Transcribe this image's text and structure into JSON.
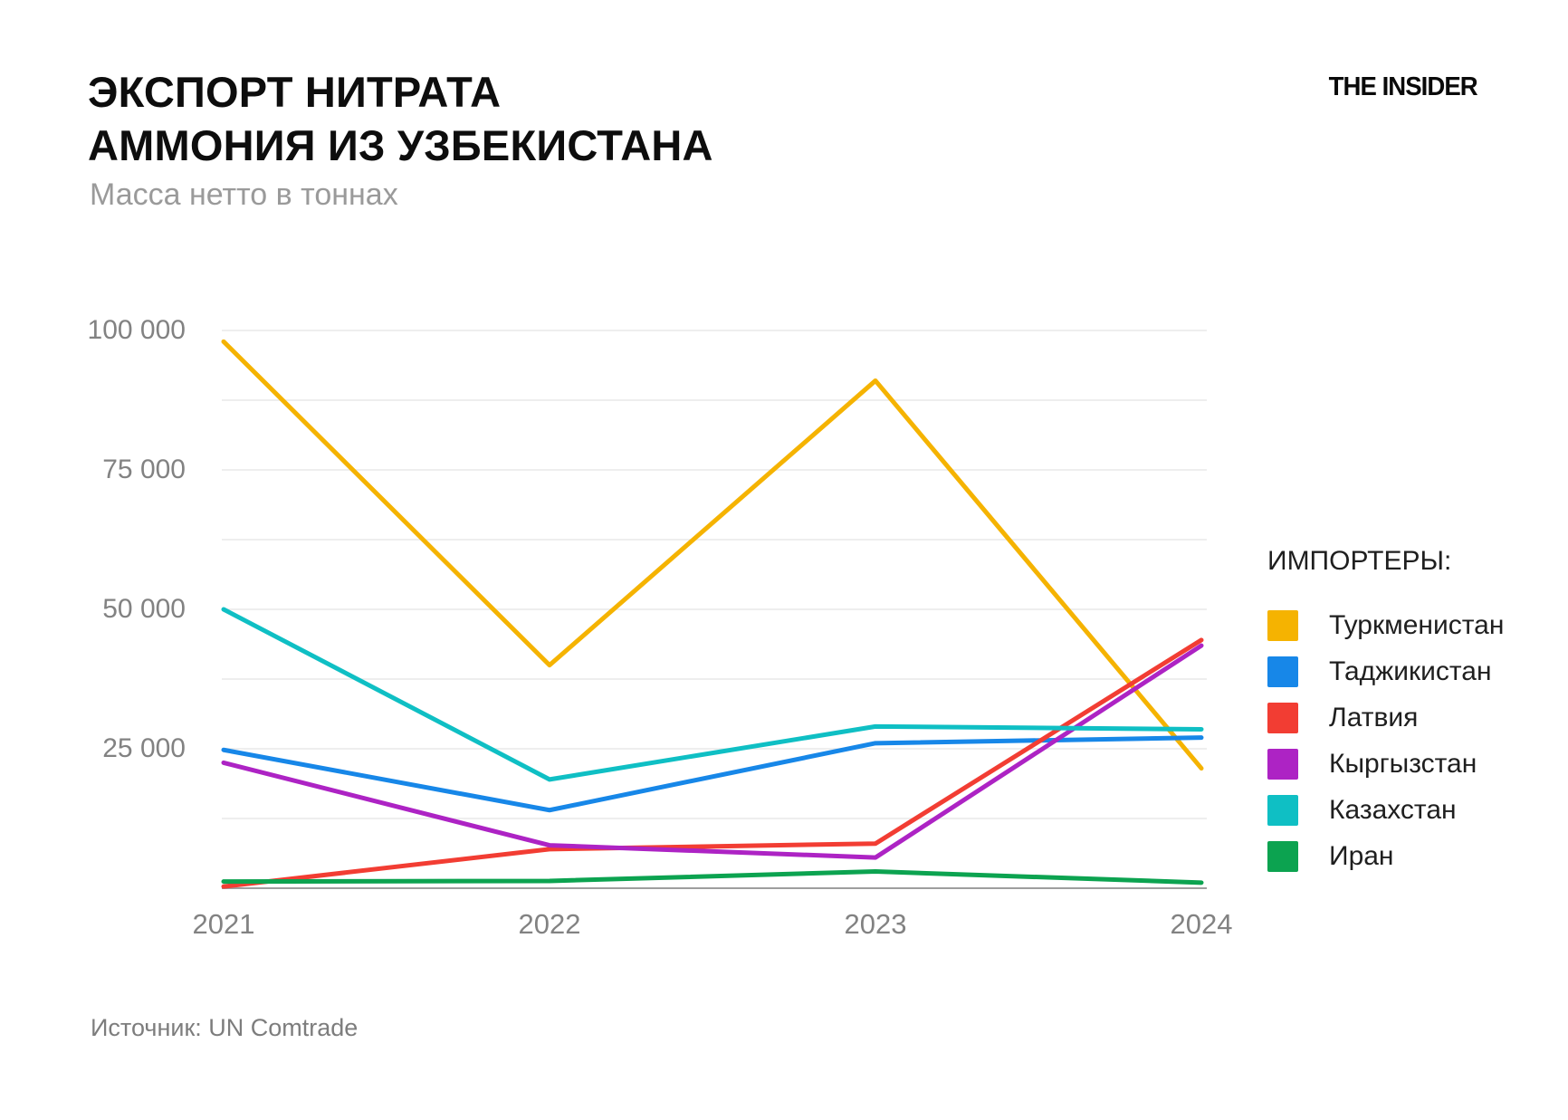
{
  "header": {
    "title_line1": "ЭКСПОРТ НИТРАТА",
    "title_line2": "АММОНИЯ ИЗ УЗБЕКИСТАНА",
    "subtitle": "Масса нетто в тоннах",
    "logo": "THE INSIDER"
  },
  "legend": {
    "title": "ИМПОРТЕРЫ:"
  },
  "source": "Источник: UN Comtrade",
  "colors": {
    "grid": "#e8e8e8",
    "axis_baseline": "#9e9e9e",
    "axis_text": "#828282"
  },
  "chart_data": {
    "type": "line",
    "title": "ЭКСПОРТ НИТРАТА АММОНИЯ ИЗ УЗБЕКИСТАНА",
    "subtitle": "Масса нетто в тоннах",
    "x": [
      "2021",
      "2022",
      "2023",
      "2024"
    ],
    "series": [
      {
        "name": "Туркменистан",
        "color": "#F5B301",
        "values": [
          98000,
          40000,
          91000,
          21500
        ]
      },
      {
        "name": "Таджикистан",
        "color": "#1787E8",
        "values": [
          24800,
          14000,
          26000,
          27000
        ]
      },
      {
        "name": "Латвия",
        "color": "#F23D33",
        "values": [
          300,
          7000,
          8000,
          44500
        ]
      },
      {
        "name": "Кыргызстан",
        "color": "#AD23C4",
        "values": [
          22500,
          7700,
          5500,
          43500
        ]
      },
      {
        "name": "Казахстан",
        "color": "#0FBFC4",
        "values": [
          50000,
          19500,
          29000,
          28500
        ]
      },
      {
        "name": "Иран",
        "color": "#0CA350",
        "values": [
          1200,
          1300,
          3000,
          1000
        ]
      }
    ],
    "xlabel": "",
    "ylabel": "",
    "ylim": [
      0,
      100000
    ],
    "yticks": [
      {
        "value": 25000,
        "label": "25 000"
      },
      {
        "value": 50000,
        "label": "50 000"
      },
      {
        "value": 75000,
        "label": "75 000"
      },
      {
        "value": 100000,
        "label": "100 000"
      }
    ],
    "gridline_step": 12500,
    "grid": true,
    "legend_position": "right",
    "legend_title": "ИМПОРТЕРЫ:"
  }
}
